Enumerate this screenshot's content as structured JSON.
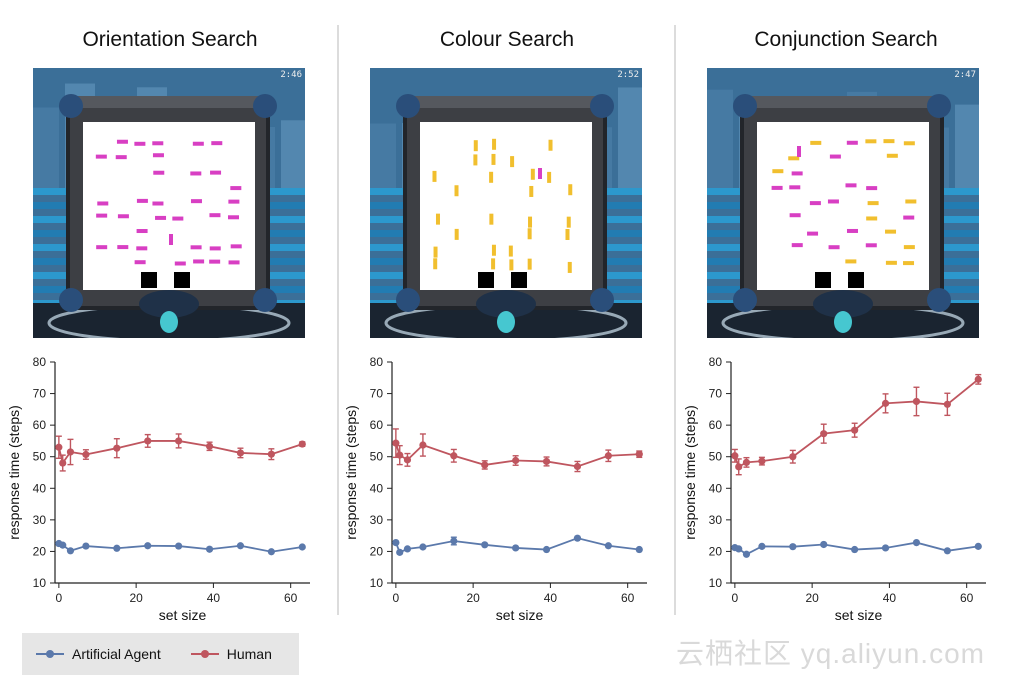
{
  "panels": [
    {
      "title": "Orientation Search",
      "timer": "2:46",
      "type": "orientation"
    },
    {
      "title": "Colour Search",
      "timer": "2:52",
      "type": "colour"
    },
    {
      "title": "Conjunction Search",
      "timer": "2:47",
      "type": "conjunction"
    }
  ],
  "colors": {
    "agent": "#5b79ab",
    "human": "#bf565f",
    "magenta": "#d83fc3",
    "yellow": "#f1bf2e"
  },
  "legend": {
    "agent_label": "Artificial Agent",
    "human_label": "Human"
  },
  "watermark": "云栖社区 yq.aliyun.com",
  "chart_data": [
    {
      "type": "line",
      "xlabel": "set size",
      "ylabel": "response time (steps)",
      "xlim": [
        -1,
        65
      ],
      "ylim": [
        10,
        80
      ],
      "xticks": [
        0,
        20,
        40,
        60
      ],
      "yticks": [
        10,
        20,
        30,
        40,
        50,
        60,
        70,
        80
      ],
      "x": [
        0,
        1,
        3,
        7,
        15,
        23,
        31,
        39,
        47,
        55,
        63
      ],
      "series": [
        {
          "name": "Artificial Agent",
          "values": [
            22.5,
            22,
            20.2,
            21.7,
            21,
            21.8,
            21.7,
            20.7,
            21.8,
            19.9,
            21.4
          ],
          "errors": [
            0.5,
            0.5,
            0.5,
            0.5,
            0.5,
            0.5,
            0.5,
            0.5,
            0.5,
            0.5,
            0.5
          ]
        },
        {
          "name": "Human",
          "values": [
            53,
            48,
            51.5,
            50.7,
            52.7,
            55,
            55,
            53.3,
            51.2,
            50.8,
            54
          ],
          "errors": [
            3.5,
            2.5,
            4,
            1.5,
            3,
            2,
            2.2,
            1.3,
            1.5,
            1.7,
            0.7
          ]
        }
      ]
    },
    {
      "type": "line",
      "xlabel": "set size",
      "ylabel": "response time (steps)",
      "xlim": [
        -1,
        65
      ],
      "ylim": [
        10,
        80
      ],
      "xticks": [
        0,
        20,
        40,
        60
      ],
      "yticks": [
        10,
        20,
        30,
        40,
        50,
        60,
        70,
        80
      ],
      "x": [
        0,
        1,
        3,
        7,
        15,
        23,
        31,
        39,
        47,
        55,
        63
      ],
      "series": [
        {
          "name": "Artificial Agent",
          "values": [
            22.8,
            19.7,
            20.8,
            21.4,
            23.3,
            22.1,
            21.1,
            20.6,
            24.2,
            21.8,
            20.6
          ],
          "errors": [
            0.5,
            0.5,
            0.5,
            0.5,
            1.2,
            0.5,
            0.5,
            0.5,
            0.5,
            0.5,
            0.5
          ]
        },
        {
          "name": "Human",
          "values": [
            54.3,
            50.5,
            49,
            53.7,
            50.3,
            47.4,
            48.8,
            48.5,
            46.9,
            50.3,
            50.8
          ],
          "errors": [
            4.5,
            3,
            2,
            3.5,
            2,
            1.3,
            1.5,
            1.4,
            1.6,
            1.8,
            1
          ]
        }
      ]
    },
    {
      "type": "line",
      "xlabel": "set size",
      "ylabel": "response time (steps)",
      "xlim": [
        -1,
        65
      ],
      "ylim": [
        10,
        80
      ],
      "xticks": [
        0,
        20,
        40,
        60
      ],
      "yticks": [
        10,
        20,
        30,
        40,
        50,
        60,
        70,
        80
      ],
      "x": [
        0,
        1,
        3,
        7,
        15,
        23,
        31,
        39,
        47,
        55,
        63
      ],
      "series": [
        {
          "name": "Artificial Agent",
          "values": [
            21.2,
            20.8,
            19.1,
            21.6,
            21.5,
            22.2,
            20.6,
            21.1,
            22.8,
            20.2,
            21.6
          ],
          "errors": [
            0.5,
            0.5,
            0.5,
            0.5,
            0.5,
            0.5,
            0.5,
            0.5,
            0.5,
            0.5,
            0.5
          ]
        },
        {
          "name": "Human",
          "values": [
            50.3,
            46.8,
            48.2,
            48.6,
            50,
            57.3,
            58.4,
            66.9,
            67.5,
            66.6,
            74.5
          ],
          "errors": [
            2,
            2.5,
            1.5,
            1.2,
            2,
            3,
            2.2,
            3,
            4.5,
            3.5,
            1.5
          ]
        }
      ]
    }
  ]
}
